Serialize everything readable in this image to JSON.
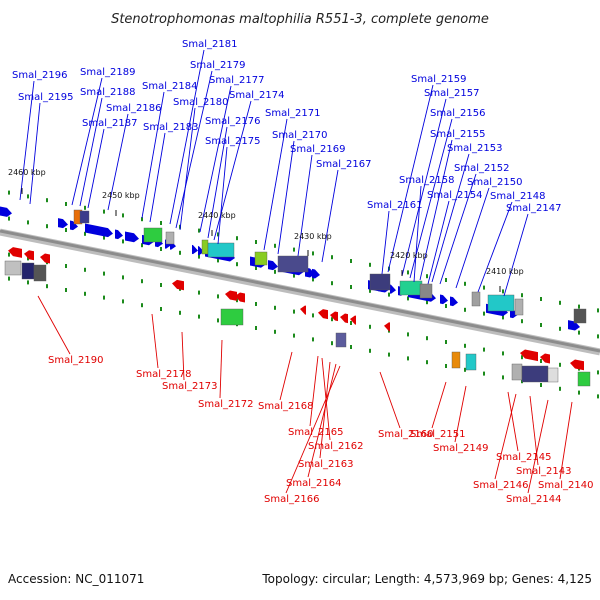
{
  "title": "Stenotrophomonas maltophilia R551-3, complete genome",
  "footer": {
    "accession": "Accession: NC_011071",
    "summary": "Topology: circular; Length: 4,573,969 bp; Genes: 4,125"
  },
  "colors": {
    "forward": "#0000dd",
    "reverse": "#e00000",
    "backbone": "#8c8c8c",
    "dot": "#1b8a1b"
  },
  "ticks": [
    "2460 kbp",
    "2450 kbp",
    "2440 kbp",
    "2430 kbp",
    "2420 kbp",
    "2410 kbp"
  ],
  "forward_genes": [
    "Smal_2196",
    "Smal_2195",
    "Smal_2189",
    "Smal_2188",
    "Smal_2187",
    "Smal_2186",
    "Smal_2184",
    "Smal_2183",
    "Smal_2181",
    "Smal_2179",
    "Smal_2180",
    "Smal_2177",
    "Smal_2176",
    "Smal_2174",
    "Smal_2175",
    "Smal_2171",
    "Smal_2170",
    "Smal_2169",
    "Smal_2167",
    "Smal_2159",
    "Smal_2157",
    "Smal_2156",
    "Smal_2155",
    "Smal_2153",
    "Smal_2152",
    "Smal_2158",
    "Smal_2150",
    "Smal_2154",
    "Smal_2148",
    "Smal_2161",
    "Smal_2147"
  ],
  "reverse_genes": [
    "Smal_2190",
    "Smal_2178",
    "Smal_2173",
    "Smal_2172",
    "Smal_2168",
    "Smal_2165",
    "Smal_2162",
    "Smal_2160",
    "Smal_2163",
    "Smal_2164",
    "Smal_2166",
    "Smal_2151",
    "Smal_2149",
    "Smal_2145",
    "Smal_2143",
    "Smal_2140",
    "Smal_2146",
    "Smal_2144"
  ]
}
